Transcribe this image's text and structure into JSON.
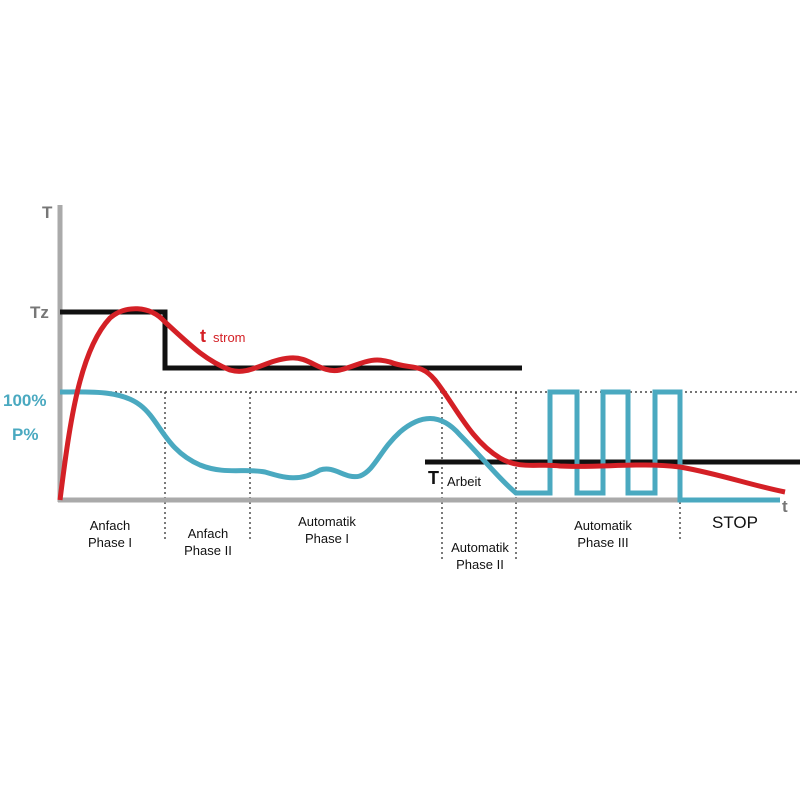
{
  "axes": {
    "y_label": "T",
    "x_label": "t",
    "tz_label": "Tz",
    "percent_label": "100%",
    "power_label": "P%"
  },
  "curve_labels": {
    "current": {
      "main": "t",
      "sub": "strom"
    },
    "working_temp": {
      "main": "T",
      "sub": "Arbeit"
    }
  },
  "phases": [
    {
      "lines": [
        "Anfach",
        "Phase I"
      ]
    },
    {
      "lines": [
        "Anfach",
        "Phase II"
      ]
    },
    {
      "lines": [
        "Automatik",
        "Phase I"
      ]
    },
    {
      "lines": [
        "Automatik",
        "Phase II"
      ]
    },
    {
      "lines": [
        "Automatik",
        "Phase III"
      ]
    }
  ],
  "stop": "STOP"
}
